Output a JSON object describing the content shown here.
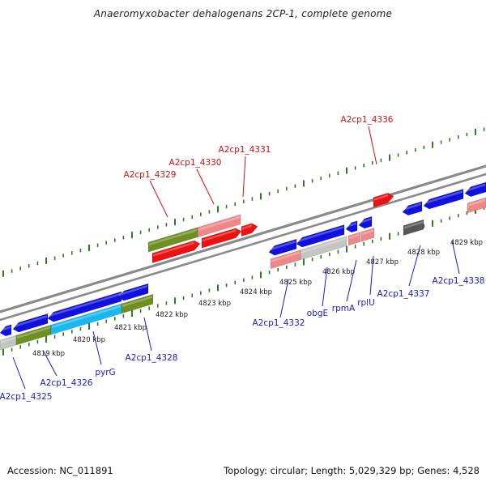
{
  "title": "Anaeromyxobacter dehalogenans 2CP-1, complete genome",
  "footer": {
    "accession": "Accession: NC_011891",
    "topology": "Topology: circular; Length: 5,029,329 bp; Genes: 4,528"
  },
  "colors": {
    "backbone": "#8a8a8a",
    "tick": "#2e7d1f",
    "label_blue": "#1a1acc",
    "label_red": "#cc1111",
    "gene_blue": "#1111dd",
    "gene_red": "#ee1111",
    "gene_pink": "#ee8888",
    "gene_olive": "#6f8f22",
    "gene_cyan": "#19b8ee",
    "gene_grey": "#c4c4c4",
    "gene_dark": "#555555"
  },
  "kbp_labels": [
    "4819 kbp",
    "4820 kbp",
    "4821 kbp",
    "4822 kbp",
    "4823 kbp",
    "4824 kbp",
    "4825 kbp",
    "4826 kbp",
    "4827 kbp",
    "4828 kbp",
    "4829 kbp"
  ],
  "gene_labels": [
    {
      "text": "A2cp1_4325",
      "strand": "minus"
    },
    {
      "text": "A2cp1_4326",
      "strand": "minus"
    },
    {
      "text": "pyrG",
      "strand": "minus"
    },
    {
      "text": "A2cp1_4328",
      "strand": "minus"
    },
    {
      "text": "A2cp1_4329",
      "strand": "plus"
    },
    {
      "text": "A2cp1_4330",
      "strand": "plus"
    },
    {
      "text": "A2cp1_4331",
      "strand": "plus"
    },
    {
      "text": "A2cp1_4332",
      "strand": "minus"
    },
    {
      "text": "obgE",
      "strand": "minus"
    },
    {
      "text": "rpmA",
      "strand": "minus"
    },
    {
      "text": "rplU",
      "strand": "minus"
    },
    {
      "text": "A2cp1_4336",
      "strand": "plus"
    },
    {
      "text": "A2cp1_4337",
      "strand": "minus"
    },
    {
      "text": "A2cp1_4338",
      "strand": "minus"
    }
  ]
}
